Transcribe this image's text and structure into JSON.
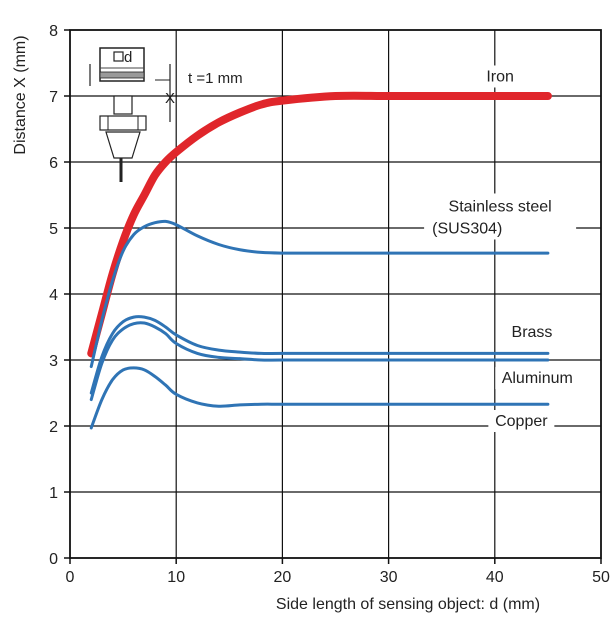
{
  "chart_data": {
    "type": "line",
    "xlabel": "Side length of sensing object: d (mm)",
    "ylabel": "Distance X (mm)",
    "xlim": [
      0,
      50
    ],
    "ylim": [
      0,
      8
    ],
    "x_ticks": [
      0,
      10,
      20,
      30,
      40,
      50
    ],
    "y_ticks": [
      0,
      1,
      2,
      3,
      4,
      5,
      6,
      7,
      8
    ],
    "grid": true,
    "annotation": {
      "side_label": "d",
      "thickness_label": "t =1 mm",
      "distance_label": "X"
    },
    "series": [
      {
        "name": "Iron",
        "color": "#e0262b",
        "x": [
          2,
          3,
          4,
          5,
          6,
          7,
          8,
          9,
          10,
          12,
          14,
          16,
          18,
          20,
          25,
          30,
          35,
          40,
          45
        ],
        "y": [
          3.1,
          3.7,
          4.3,
          4.8,
          5.2,
          5.5,
          5.8,
          6.0,
          6.15,
          6.4,
          6.6,
          6.75,
          6.87,
          6.93,
          7.0,
          7.0,
          7.0,
          7.0,
          7.0
        ]
      },
      {
        "name": "Stainless steel",
        "name_line2": "(SUS304)",
        "color": "#2f74b5",
        "x": [
          2,
          3,
          4,
          5,
          6,
          7,
          8,
          9,
          10,
          12,
          14,
          16,
          18,
          20,
          25,
          30,
          35,
          40,
          45
        ],
        "y": [
          2.9,
          3.6,
          4.2,
          4.65,
          4.9,
          5.02,
          5.08,
          5.1,
          5.05,
          4.88,
          4.75,
          4.67,
          4.63,
          4.62,
          4.62,
          4.62,
          4.62,
          4.62,
          4.62
        ]
      },
      {
        "name": "Brass",
        "color": "#2f74b5",
        "x": [
          2,
          3,
          4,
          5,
          6,
          7,
          8,
          9,
          10,
          12,
          14,
          16,
          18,
          20,
          25,
          30,
          35,
          40,
          45
        ],
        "y": [
          2.5,
          3.05,
          3.4,
          3.58,
          3.65,
          3.65,
          3.6,
          3.5,
          3.38,
          3.22,
          3.15,
          3.12,
          3.1,
          3.1,
          3.1,
          3.1,
          3.1,
          3.1,
          3.1
        ]
      },
      {
        "name": "Aluminum",
        "color": "#2f74b5",
        "x": [
          2,
          3,
          4,
          5,
          6,
          7,
          8,
          9,
          10,
          12,
          14,
          16,
          18,
          20,
          25,
          30,
          35,
          40,
          45
        ],
        "y": [
          2.4,
          2.95,
          3.3,
          3.47,
          3.55,
          3.56,
          3.5,
          3.4,
          3.25,
          3.1,
          3.04,
          3.02,
          3.0,
          3.0,
          3.0,
          3.0,
          3.0,
          3.0,
          3.0
        ]
      },
      {
        "name": "Copper",
        "color": "#2f74b5",
        "x": [
          2,
          3,
          4,
          5,
          6,
          7,
          8,
          9,
          10,
          12,
          14,
          16,
          18,
          20,
          25,
          30,
          35,
          40,
          45
        ],
        "y": [
          1.97,
          2.4,
          2.7,
          2.85,
          2.88,
          2.85,
          2.75,
          2.62,
          2.48,
          2.35,
          2.3,
          2.32,
          2.33,
          2.33,
          2.33,
          2.33,
          2.33,
          2.33,
          2.33
        ]
      }
    ]
  }
}
